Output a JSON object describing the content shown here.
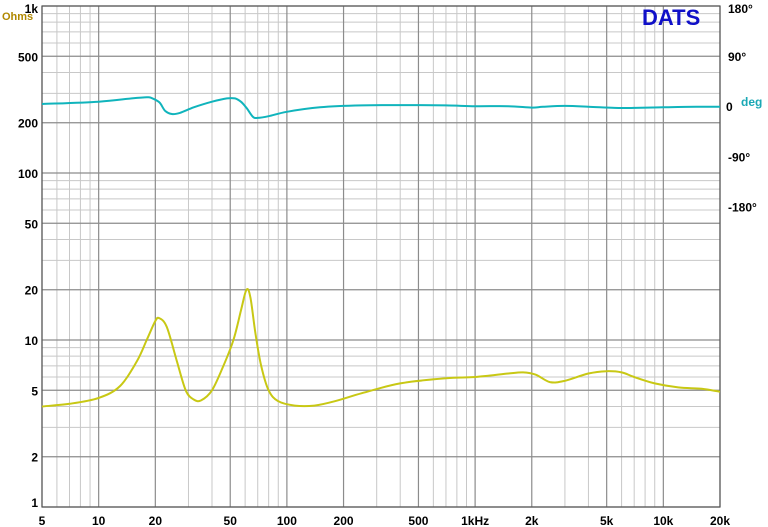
{
  "chart_data": {
    "type": "line",
    "logo": "DATS",
    "x_axis": {
      "scale": "log",
      "range": [
        5,
        20000
      ],
      "tick_labels": [
        {
          "value": 5,
          "label": "5"
        },
        {
          "value": 10,
          "label": "10"
        },
        {
          "value": 20,
          "label": "20"
        },
        {
          "value": 50,
          "label": "50"
        },
        {
          "value": 100,
          "label": "100"
        },
        {
          "value": 200,
          "label": "200"
        },
        {
          "value": 500,
          "label": "500"
        },
        {
          "value": 1000,
          "label": "1kHz"
        },
        {
          "value": 2000,
          "label": "2k"
        },
        {
          "value": 5000,
          "label": "5k"
        },
        {
          "value": 10000,
          "label": "10k"
        },
        {
          "value": 20000,
          "label": "20k"
        }
      ]
    },
    "y_left": {
      "scale": "log",
      "range": [
        1,
        1000
      ],
      "unit": "Ohms",
      "tick_labels": [
        {
          "value": 1000,
          "label": "1k"
        },
        {
          "value": 500,
          "label": "500"
        },
        {
          "value": 200,
          "label": "200"
        },
        {
          "value": 100,
          "label": "100"
        },
        {
          "value": 50,
          "label": "50"
        },
        {
          "value": 20,
          "label": "20"
        },
        {
          "value": 10,
          "label": "10"
        },
        {
          "value": 5,
          "label": "5"
        },
        {
          "value": 2,
          "label": "2"
        },
        {
          "value": 1,
          "label": "1"
        }
      ]
    },
    "y_right": {
      "scale": "linear",
      "range": [
        -180,
        180
      ],
      "unit": "deg",
      "tick_labels": [
        {
          "value": 180,
          "label": "180°"
        },
        {
          "value": 90,
          "label": "90°"
        },
        {
          "value": 0,
          "label": "0"
        },
        {
          "value": -90,
          "label": "-90°"
        },
        {
          "value": -180,
          "label": "-180°"
        }
      ]
    },
    "grid": true,
    "series": [
      {
        "axis": "left",
        "color": "#c8c814",
        "points": [
          [
            5,
            4.0
          ],
          [
            7,
            4.15
          ],
          [
            10,
            4.5
          ],
          [
            13,
            5.3
          ],
          [
            16,
            7.5
          ],
          [
            18,
            10
          ],
          [
            20,
            13
          ],
          [
            21,
            13.5
          ],
          [
            23,
            12
          ],
          [
            26,
            7.5
          ],
          [
            29,
            5.0
          ],
          [
            32,
            4.4
          ],
          [
            35,
            4.35
          ],
          [
            40,
            5.0
          ],
          [
            46,
            7.0
          ],
          [
            52,
            10
          ],
          [
            57,
            15
          ],
          [
            61,
            20
          ],
          [
            64,
            18
          ],
          [
            68,
            11
          ],
          [
            73,
            7.0
          ],
          [
            80,
            5.0
          ],
          [
            90,
            4.3
          ],
          [
            110,
            4.05
          ],
          [
            140,
            4.05
          ],
          [
            180,
            4.3
          ],
          [
            250,
            4.8
          ],
          [
            400,
            5.5
          ],
          [
            700,
            5.9
          ],
          [
            1000,
            6.0
          ],
          [
            1500,
            6.3
          ],
          [
            1800,
            6.4
          ],
          [
            2100,
            6.2
          ],
          [
            2500,
            5.6
          ],
          [
            3000,
            5.7
          ],
          [
            4000,
            6.3
          ],
          [
            5000,
            6.5
          ],
          [
            6000,
            6.4
          ],
          [
            7000,
            6.0
          ],
          [
            9000,
            5.5
          ],
          [
            12000,
            5.2
          ],
          [
            16000,
            5.1
          ],
          [
            20000,
            4.9
          ]
        ]
      },
      {
        "axis": "right",
        "color": "#10b4bc",
        "points": [
          [
            5,
            4
          ],
          [
            10,
            8
          ],
          [
            15,
            14
          ],
          [
            18,
            16
          ],
          [
            19,
            15
          ],
          [
            21,
            7
          ],
          [
            22.5,
            -8
          ],
          [
            24.5,
            -14
          ],
          [
            27,
            -12
          ],
          [
            32,
            -2
          ],
          [
            40,
            8
          ],
          [
            48,
            14
          ],
          [
            53,
            14
          ],
          [
            57,
            8
          ],
          [
            61,
            -3
          ],
          [
            66,
            -19
          ],
          [
            70,
            -21
          ],
          [
            80,
            -18
          ],
          [
            100,
            -10
          ],
          [
            150,
            -2
          ],
          [
            250,
            1.5
          ],
          [
            400,
            2
          ],
          [
            700,
            1.5
          ],
          [
            1000,
            0
          ],
          [
            1500,
            0
          ],
          [
            2000,
            -2.5
          ],
          [
            2300,
            -1
          ],
          [
            3000,
            0.5
          ],
          [
            4000,
            -1
          ],
          [
            5500,
            -3
          ],
          [
            7000,
            -3
          ],
          [
            10000,
            -2
          ],
          [
            15000,
            -1
          ],
          [
            20000,
            -1
          ]
        ]
      }
    ]
  }
}
